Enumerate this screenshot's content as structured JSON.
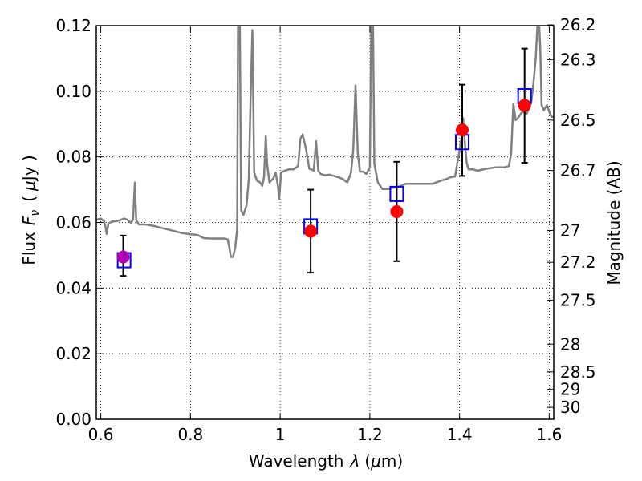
{
  "chart_data": {
    "type": "scatter",
    "xlabel": "Wavelength",
    "xlabel_symbol": "λ",
    "xlabel_unit_open": "(",
    "xlabel_unit_mu": "μ",
    "xlabel_unit_close": "m)",
    "ylabel": "Flux",
    "ylabel_symbol": "F",
    "ylabel_symbol_sub": "ν",
    "ylabel_unit_open": "(",
    "ylabel_unit_mu": "μ",
    "ylabel_unit_close": "Jy )",
    "y2label": "Magnitude (AB)",
    "xlim": [
      0.59,
      1.61
    ],
    "ylim": [
      0.0,
      0.12
    ],
    "grid": true,
    "x_ticks": [
      0.6,
      0.8,
      1.0,
      1.2,
      1.4,
      1.6
    ],
    "x_tick_labels": [
      "0.6",
      "0.8",
      "1",
      "1.2",
      "1.4",
      "1.6"
    ],
    "y_ticks": [
      0.0,
      0.02,
      0.04,
      0.06,
      0.08,
      0.1,
      0.12
    ],
    "y_tick_labels": [
      "0.00",
      "0.02",
      "0.04",
      "0.06",
      "0.08",
      "0.10",
      "0.12"
    ],
    "mag_ticks": [
      26.2,
      26.3,
      26.5,
      26.7,
      27,
      27.2,
      27.5,
      28,
      28.5,
      29,
      30
    ],
    "mag_tick_labels": [
      "26.2",
      "26.3",
      "26.5",
      "26.7",
      "27",
      "27.2",
      "27.5",
      "28",
      "28.5",
      "29",
      "30"
    ],
    "series": [
      {
        "role": "model",
        "color": "#808080",
        "points": [
          [
            0.59,
            0.0608
          ],
          [
            0.6,
            0.0612
          ],
          [
            0.607,
            0.0605
          ],
          [
            0.61,
            0.059
          ],
          [
            0.613,
            0.0565
          ],
          [
            0.617,
            0.0596
          ],
          [
            0.625,
            0.0603
          ],
          [
            0.635,
            0.0604
          ],
          [
            0.645,
            0.0608
          ],
          [
            0.652,
            0.0612
          ],
          [
            0.66,
            0.0608
          ],
          [
            0.668,
            0.0598
          ],
          [
            0.672,
            0.061
          ],
          [
            0.676,
            0.0722
          ],
          [
            0.679,
            0.0606
          ],
          [
            0.685,
            0.0594
          ],
          [
            0.7,
            0.0594
          ],
          [
            0.72,
            0.0589
          ],
          [
            0.74,
            0.0582
          ],
          [
            0.76,
            0.0575
          ],
          [
            0.78,
            0.0568
          ],
          [
            0.8,
            0.0564
          ],
          [
            0.815,
            0.0562
          ],
          [
            0.83,
            0.0552
          ],
          [
            0.845,
            0.0551
          ],
          [
            0.86,
            0.0551
          ],
          [
            0.875,
            0.0551
          ],
          [
            0.883,
            0.0548
          ],
          [
            0.887,
            0.0522
          ],
          [
            0.89,
            0.0495
          ],
          [
            0.895,
            0.0495
          ],
          [
            0.9,
            0.0525
          ],
          [
            0.904,
            0.058
          ],
          [
            0.906,
            0.121
          ],
          [
            0.91,
            0.121
          ],
          [
            0.913,
            0.0638
          ],
          [
            0.918,
            0.0623
          ],
          [
            0.925,
            0.0652
          ],
          [
            0.93,
            0.0731
          ],
          [
            0.934,
            0.0975
          ],
          [
            0.938,
            0.1186
          ],
          [
            0.942,
            0.0752
          ],
          [
            0.948,
            0.0728
          ],
          [
            0.955,
            0.0722
          ],
          [
            0.96,
            0.0712
          ],
          [
            0.964,
            0.0738
          ],
          [
            0.968,
            0.0864
          ],
          [
            0.971,
            0.0778
          ],
          [
            0.976,
            0.0722
          ],
          [
            0.985,
            0.0735
          ],
          [
            0.99,
            0.0752
          ],
          [
            0.995,
            0.0712
          ],
          [
            0.998,
            0.0672
          ],
          [
            1.002,
            0.0752
          ],
          [
            1.01,
            0.0758
          ],
          [
            1.02,
            0.0762
          ],
          [
            1.03,
            0.0762
          ],
          [
            1.04,
            0.0772
          ],
          [
            1.045,
            0.0855
          ],
          [
            1.05,
            0.0868
          ],
          [
            1.058,
            0.0822
          ],
          [
            1.065,
            0.0764
          ],
          [
            1.075,
            0.0758
          ],
          [
            1.08,
            0.0848
          ],
          [
            1.085,
            0.0758
          ],
          [
            1.09,
            0.0748
          ],
          [
            1.1,
            0.0744
          ],
          [
            1.11,
            0.0746
          ],
          [
            1.12,
            0.0742
          ],
          [
            1.13,
            0.0738
          ],
          [
            1.14,
            0.0732
          ],
          [
            1.15,
            0.0722
          ],
          [
            1.158,
            0.0752
          ],
          [
            1.163,
            0.0822
          ],
          [
            1.168,
            0.1018
          ],
          [
            1.173,
            0.0812
          ],
          [
            1.178,
            0.0755
          ],
          [
            1.185,
            0.0755
          ],
          [
            1.192,
            0.0748
          ],
          [
            1.2,
            0.0768
          ],
          [
            1.203,
            0.121
          ],
          [
            1.207,
            0.121
          ],
          [
            1.21,
            0.0778
          ],
          [
            1.218,
            0.0722
          ],
          [
            1.228,
            0.0702
          ],
          [
            1.24,
            0.0702
          ],
          [
            1.26,
            0.0708
          ],
          [
            1.27,
            0.0712
          ],
          [
            1.28,
            0.0718
          ],
          [
            1.3,
            0.0718
          ],
          [
            1.32,
            0.0718
          ],
          [
            1.34,
            0.0718
          ],
          [
            1.36,
            0.0728
          ],
          [
            1.37,
            0.0732
          ],
          [
            1.38,
            0.0738
          ],
          [
            1.39,
            0.074
          ],
          [
            1.395,
            0.0782
          ],
          [
            1.4,
            0.0818
          ],
          [
            1.405,
            0.0862
          ],
          [
            1.408,
            0.0918
          ],
          [
            1.412,
            0.0838
          ],
          [
            1.416,
            0.0782
          ],
          [
            1.42,
            0.0762
          ],
          [
            1.43,
            0.0762
          ],
          [
            1.44,
            0.0758
          ],
          [
            1.46,
            0.0764
          ],
          [
            1.48,
            0.0768
          ],
          [
            1.5,
            0.0768
          ],
          [
            1.51,
            0.0772
          ],
          [
            1.515,
            0.0808
          ],
          [
            1.52,
            0.0962
          ],
          [
            1.525,
            0.0912
          ],
          [
            1.53,
            0.0918
          ],
          [
            1.54,
            0.0938
          ],
          [
            1.55,
            0.0932
          ],
          [
            1.56,
            0.0968
          ],
          [
            1.565,
            0.1028
          ],
          [
            1.57,
            0.1102
          ],
          [
            1.574,
            0.1212
          ],
          [
            1.577,
            0.121
          ],
          [
            1.58,
            0.1135
          ],
          [
            1.583,
            0.0958
          ],
          [
            1.588,
            0.0942
          ],
          [
            1.595,
            0.0958
          ],
          [
            1.6,
            0.0938
          ],
          [
            1.605,
            0.0922
          ],
          [
            1.61,
            0.0922
          ]
        ]
      },
      {
        "role": "squares",
        "color": "#0000ff",
        "points": [
          [
            0.652,
            0.0485
          ],
          [
            1.068,
            0.0588
          ],
          [
            1.26,
            0.0687
          ],
          [
            1.406,
            0.0845
          ],
          [
            1.545,
            0.0985
          ]
        ]
      },
      {
        "role": "dots",
        "color": "#ff0000",
        "points": [
          [
            0.65,
            0.0495
          ],
          [
            1.068,
            0.0573
          ],
          [
            1.26,
            0.0633
          ],
          [
            1.406,
            0.0882
          ],
          [
            1.545,
            0.0957
          ]
        ]
      }
    ],
    "errorbars": [
      {
        "x": 0.65,
        "low": 0.0437,
        "high": 0.056
      },
      {
        "x": 1.068,
        "low": 0.0447,
        "high": 0.07
      },
      {
        "x": 1.26,
        "low": 0.0482,
        "high": 0.0785
      },
      {
        "x": 1.406,
        "low": 0.0742,
        "high": 0.102
      },
      {
        "x": 1.545,
        "low": 0.0782,
        "high": 0.113
      }
    ],
    "first_point_color": "#b000b0"
  }
}
